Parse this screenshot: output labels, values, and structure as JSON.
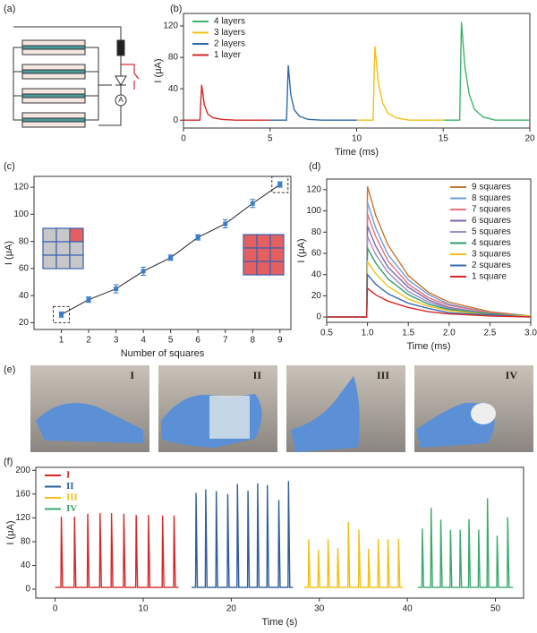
{
  "panels": {
    "a": {
      "label": "(a)",
      "ammeter": "A"
    },
    "e": {
      "label": "(e)",
      "photo_labels": [
        "I",
        "II",
        "III",
        "IV"
      ]
    }
  },
  "chart_data": [
    {
      "type": "line",
      "panel": "(b)",
      "xlabel": "Time (ms)",
      "ylabel": "I (μA)",
      "xlim": [
        0,
        20
      ],
      "xticks": [
        0,
        5,
        10,
        15,
        20
      ],
      "ylim": [
        -10,
        136
      ],
      "yticks": [
        0,
        40,
        80,
        120
      ],
      "legend": "upper left",
      "series": [
        {
          "name": "4 layers",
          "color": "#3fb36b",
          "x": [
            15,
            15.95,
            16.05,
            16.25,
            16.5,
            16.8,
            17.3,
            18,
            20
          ],
          "values": [
            0,
            0,
            125,
            68,
            33,
            14,
            4,
            0,
            0
          ]
        },
        {
          "name": "3 layers",
          "color": "#f2c014",
          "x": [
            10,
            10.95,
            11.05,
            11.25,
            11.5,
            11.8,
            12.3,
            13,
            15
          ],
          "values": [
            0,
            0,
            94,
            48,
            22,
            9,
            3,
            0,
            0
          ]
        },
        {
          "name": "2 layers",
          "color": "#2e6aa8",
          "x": [
            5,
            5.95,
            6.05,
            6.2,
            6.4,
            6.7,
            7.2,
            8,
            10
          ],
          "values": [
            0,
            0,
            70,
            32,
            13,
            5,
            1,
            0,
            0
          ]
        },
        {
          "name": "1 layer",
          "color": "#d62728",
          "x": [
            0,
            0.95,
            1.05,
            1.2,
            1.4,
            1.7,
            2.2,
            3,
            5
          ],
          "values": [
            0,
            0,
            45,
            20,
            8,
            3,
            1,
            0,
            0
          ]
        }
      ]
    },
    {
      "type": "errorbar",
      "panel": "(c)",
      "xlabel": "Number of squares",
      "ylabel": "I (μA)",
      "xlim": [
        0,
        9.4
      ],
      "xticks": [
        1,
        2,
        3,
        4,
        5,
        6,
        7,
        8,
        9
      ],
      "ylim": [
        15,
        128
      ],
      "yticks": [
        20,
        40,
        60,
        80,
        100,
        120
      ],
      "color": "#3a7dc9",
      "line_color": "#222222",
      "x": [
        1,
        2,
        3,
        4,
        5,
        6,
        7,
        8,
        9
      ],
      "values": [
        26,
        37,
        45,
        58,
        68,
        83,
        93,
        108,
        122
      ],
      "errors": [
        2,
        2,
        3,
        3,
        2,
        2,
        3,
        3,
        2
      ]
    },
    {
      "type": "line",
      "panel": "(d)",
      "xlabel": "Time (ms)",
      "ylabel": "I (μA)",
      "xlim": [
        0.5,
        3
      ],
      "xticks": [
        0.5,
        {
          "value": 1,
          "label": "1.0"
        },
        1.5,
        {
          "value": 2,
          "label": "2.0"
        },
        2.5,
        {
          "value": 3,
          "label": "3.0"
        }
      ],
      "ylim": [
        -5,
        130
      ],
      "yticks": [
        0,
        20,
        40,
        60,
        80,
        100,
        120
      ],
      "legend": "upper right",
      "x": [
        0.5,
        0.99,
        1.0,
        1.1,
        1.25,
        1.5,
        1.75,
        2.0,
        2.5,
        3.0
      ],
      "series": [
        {
          "name": "9 squares",
          "color": "#c8742b",
          "values": [
            0,
            0,
            123,
            96,
            68,
            39,
            23,
            14,
            5,
            1
          ]
        },
        {
          "name": "8 squares",
          "color": "#6f9fd8",
          "values": [
            0,
            0,
            108,
            84,
            59,
            35,
            21,
            12,
            4,
            1
          ]
        },
        {
          "name": "7 squares",
          "color": "#e3737e",
          "values": [
            0,
            0,
            97,
            76,
            53,
            31,
            18,
            11,
            4,
            1
          ]
        },
        {
          "name": "6 squares",
          "color": "#7d6aa8",
          "values": [
            0,
            0,
            86,
            67,
            47,
            28,
            16,
            9,
            3,
            1
          ]
        },
        {
          "name": "5 squares",
          "color": "#a08cc8",
          "values": [
            0,
            0,
            76,
            59,
            42,
            24,
            14,
            8,
            3,
            1
          ]
        },
        {
          "name": "4 squares",
          "color": "#2a9d6a",
          "values": [
            0,
            0,
            65,
            51,
            36,
            21,
            12,
            7,
            3,
            1
          ]
        },
        {
          "name": "3 squares",
          "color": "#f0c020",
          "values": [
            0,
            0,
            52,
            41,
            29,
            17,
            10,
            6,
            2,
            1
          ]
        },
        {
          "name": "2 squares",
          "color": "#3a6db5",
          "values": [
            0,
            0,
            40,
            31,
            22,
            13,
            8,
            4,
            2,
            0
          ]
        },
        {
          "name": "1 square",
          "color": "#d62728",
          "values": [
            0,
            0,
            27,
            21,
            15,
            9,
            5,
            3,
            1,
            0
          ]
        }
      ]
    },
    {
      "type": "line",
      "panel": "(f)",
      "xlabel": "Time (s)",
      "ylabel": "I (μA)",
      "xlim": [
        -2.2,
        53.2
      ],
      "xticks": [
        0,
        10,
        20,
        30,
        40,
        50
      ],
      "ylim": [
        -15,
        205
      ],
      "yticks": [
        0,
        40,
        80,
        120,
        160,
        200
      ],
      "legend": "upper left",
      "series": [
        {
          "name": "I",
          "color": "#d62728",
          "x": [
            0,
            0.65,
            0.7,
            0.85,
            2.15,
            2.2,
            2.35,
            3.65,
            3.7,
            3.85,
            5.05,
            5.1,
            5.25,
            6.35,
            6.4,
            6.55,
            7.75,
            7.8,
            7.95,
            9.15,
            9.2,
            9.35,
            10.55,
            10.6,
            10.75,
            12.15,
            12.2,
            12.35,
            13.45,
            13.5,
            13.65,
            14
          ],
          "values": [
            3,
            3,
            122,
            3,
            3,
            122,
            3,
            3,
            127,
            3,
            3,
            128,
            3,
            3,
            128,
            3,
            3,
            127,
            3,
            3,
            125,
            3,
            3,
            125,
            3,
            3,
            124,
            3,
            3,
            124,
            3,
            3
          ]
        },
        {
          "name": "II",
          "color": "#2e5e9e",
          "x": [
            15.5,
            15.95,
            16,
            16.15,
            17.05,
            17.1,
            17.25,
            18.25,
            18.3,
            18.45,
            19.55,
            19.6,
            19.75,
            20.65,
            20.7,
            20.85,
            21.85,
            21.9,
            22.05,
            22.95,
            23,
            23.15,
            24.05,
            24.1,
            24.25,
            25.35,
            25.4,
            25.55,
            26.45,
            26.5,
            26.65,
            27
          ],
          "values": [
            3,
            3,
            162,
            3,
            3,
            168,
            3,
            3,
            165,
            3,
            3,
            160,
            3,
            3,
            177,
            3,
            3,
            166,
            3,
            3,
            178,
            3,
            3,
            175,
            3,
            3,
            150,
            3,
            3,
            182,
            3,
            3
          ]
        },
        {
          "name": "III",
          "color": "#f2c014",
          "x": [
            28.3,
            28.75,
            28.8,
            28.95,
            29.85,
            29.9,
            30.05,
            30.95,
            31,
            31.15,
            32.05,
            32.1,
            32.25,
            33.25,
            33.3,
            33.45,
            34.45,
            34.5,
            34.65,
            35.55,
            35.6,
            35.75,
            36.65,
            36.7,
            36.85,
            37.75,
            37.8,
            37.95,
            38.95,
            39,
            39.15,
            39.5
          ],
          "values": [
            3,
            3,
            84,
            3,
            3,
            66,
            3,
            3,
            84,
            3,
            3,
            69,
            3,
            3,
            113,
            3,
            3,
            100,
            3,
            3,
            68,
            3,
            3,
            84,
            3,
            3,
            84,
            3,
            3,
            85,
            3,
            3
          ]
        },
        {
          "name": "IV",
          "color": "#3aaa6a",
          "x": [
            41.2,
            41.65,
            41.7,
            41.85,
            42.65,
            42.7,
            42.85,
            43.75,
            43.8,
            43.95,
            44.85,
            44.9,
            45.05,
            45.95,
            46,
            46.15,
            46.95,
            47,
            47.15,
            48.05,
            48.1,
            48.25,
            49.05,
            49.1,
            49.25,
            50.15,
            50.2,
            50.35,
            51.35,
            51.4,
            51.55,
            52
          ],
          "values": [
            3,
            3,
            102,
            3,
            3,
            137,
            3,
            3,
            117,
            3,
            3,
            100,
            3,
            3,
            100,
            3,
            3,
            118,
            3,
            3,
            100,
            3,
            3,
            153,
            3,
            3,
            90,
            3,
            3,
            121,
            3,
            3
          ]
        }
      ]
    }
  ]
}
